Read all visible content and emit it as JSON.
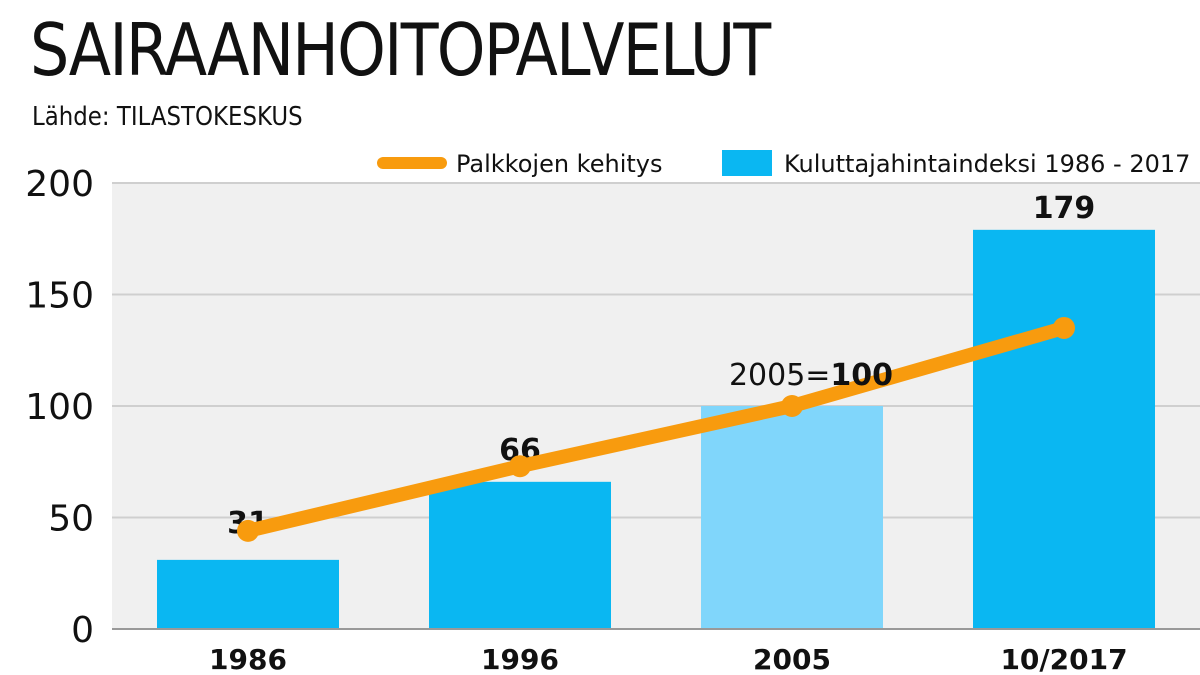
{
  "header": {
    "title": "SAIRAANHOITOPALVELUT",
    "source": "Lähde: TILASTOKESKUS"
  },
  "legend": {
    "line_label": "Palkkojen kehitys",
    "bar_label": "Kuluttajahintaindeksi 1986 - 2017",
    "placement": "top-right"
  },
  "annotation": {
    "prefix": "2005=",
    "value": "100"
  },
  "colors": {
    "bar": "#0ab7f2",
    "bar_highlight": "#80d6fb",
    "line": "#f89b0e",
    "plot_bg": "#f0f0f0",
    "grid": "#cfcfcf"
  },
  "chart_data": {
    "type": "bar",
    "title": "SAIRAANHOITOPALVELUT",
    "categories": [
      "1986",
      "1996",
      "2005",
      "10/2017"
    ],
    "series": [
      {
        "name": "Kuluttajahintaindeksi 1986 - 2017",
        "type": "bar",
        "values": [
          31,
          66,
          100,
          179
        ],
        "labels": [
          "31",
          "66",
          "",
          "179"
        ]
      },
      {
        "name": "Palkkojen kehitys",
        "type": "line",
        "values": [
          44,
          73,
          100,
          135
        ]
      }
    ],
    "yticks": [
      "0",
      "50",
      "100",
      "150",
      "200"
    ],
    "ylim": [
      0,
      200
    ],
    "grid": true,
    "xlabel": "",
    "ylabel": ""
  }
}
